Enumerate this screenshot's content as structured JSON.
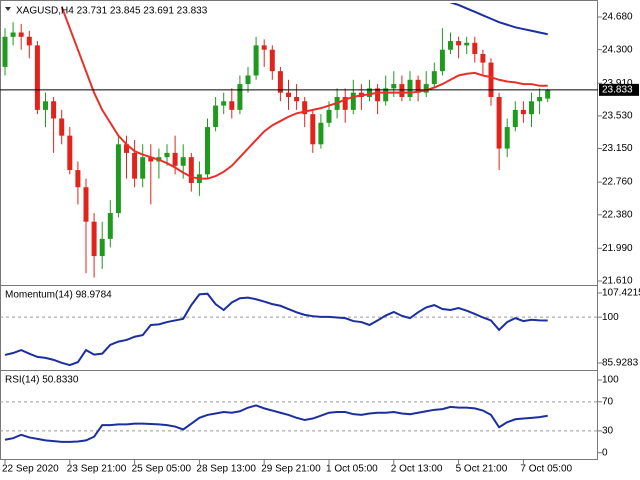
{
  "chart_data": [
    {
      "type": "candlestick",
      "title": "XAGUSD,H4  23.731 23.845 23.691 23.833",
      "categories": [
        "22 Sep 2020",
        null,
        null,
        null,
        null,
        null,
        null,
        null,
        "23 Sep 21:00",
        null,
        null,
        null,
        null,
        null,
        null,
        null,
        "25 Sep 05:00",
        null,
        null,
        null,
        null,
        null,
        null,
        null,
        "28 Sep 13:00",
        null,
        null,
        null,
        null,
        null,
        null,
        null,
        "29 Sep 21:00",
        null,
        null,
        null,
        null,
        null,
        null,
        null,
        "1 Oct 05:00",
        null,
        null,
        null,
        null,
        null,
        null,
        null,
        "2 Oct 13:00",
        null,
        null,
        null,
        null,
        null,
        null,
        null,
        "5 Oct 21:00",
        null,
        null,
        null,
        null,
        null,
        null,
        null,
        "7 Oct 05:00",
        null,
        null,
        null
      ],
      "open": [
        24.1,
        24.45,
        24.5,
        24.45,
        24.35,
        23.6,
        23.7,
        23.5,
        23.3,
        22.9,
        22.7,
        22.3,
        21.9,
        22.1,
        22.4,
        23.2,
        23.1,
        22.8,
        23.05,
        23.0,
        23.05,
        23.1,
        22.95,
        23.05,
        22.75,
        22.85,
        23.4,
        23.65,
        23.7,
        23.6,
        23.9,
        24.0,
        24.35,
        24.3,
        24.05,
        23.8,
        23.75,
        23.7,
        23.55,
        23.2,
        23.45,
        23.6,
        23.75,
        23.6,
        23.8,
        23.75,
        23.85,
        23.7,
        23.85,
        23.9,
        23.75,
        23.95,
        23.8,
        23.9,
        24.05,
        24.3,
        24.4,
        24.35,
        24.38,
        24.25,
        24.15,
        23.75,
        23.15,
        23.4,
        23.6,
        23.55,
        23.7,
        23.731
      ],
      "high": [
        24.55,
        24.62,
        24.6,
        24.52,
        24.4,
        23.8,
        23.75,
        23.6,
        23.4,
        23.0,
        22.8,
        22.4,
        22.3,
        22.55,
        23.3,
        23.3,
        23.25,
        23.2,
        23.2,
        23.15,
        23.2,
        23.3,
        23.2,
        23.1,
        23.0,
        23.5,
        23.75,
        23.8,
        23.85,
        24.0,
        24.1,
        24.45,
        24.42,
        24.35,
        24.1,
        23.95,
        23.9,
        23.75,
        23.6,
        23.55,
        23.7,
        23.85,
        23.85,
        23.95,
        23.9,
        23.95,
        23.9,
        24.0,
        24.05,
        24.0,
        24.05,
        24.0,
        24.05,
        24.15,
        24.55,
        24.5,
        24.45,
        24.45,
        24.45,
        24.3,
        24.2,
        23.8,
        23.5,
        23.7,
        23.7,
        23.8,
        23.85,
        23.845
      ],
      "low": [
        24.0,
        24.35,
        24.3,
        24.2,
        23.55,
        23.4,
        23.1,
        23.2,
        22.85,
        22.5,
        21.7,
        21.65,
        21.75,
        22.0,
        22.35,
        22.8,
        22.7,
        22.7,
        22.5,
        22.8,
        22.95,
        22.85,
        22.8,
        22.65,
        22.6,
        22.8,
        23.35,
        23.55,
        23.5,
        23.55,
        23.8,
        23.95,
        24.1,
        23.95,
        23.7,
        23.6,
        23.6,
        23.4,
        23.1,
        23.15,
        23.4,
        23.5,
        23.45,
        23.55,
        23.6,
        23.7,
        23.55,
        23.65,
        23.75,
        23.7,
        23.7,
        23.7,
        23.75,
        23.85,
        24.0,
        24.25,
        24.2,
        24.25,
        24.15,
        24.0,
        23.65,
        22.9,
        23.05,
        23.35,
        23.45,
        23.4,
        23.55,
        23.691
      ],
      "close": [
        24.45,
        24.5,
        24.45,
        24.35,
        23.6,
        23.7,
        23.5,
        23.3,
        22.9,
        22.7,
        22.3,
        21.9,
        22.1,
        22.4,
        23.2,
        23.1,
        22.8,
        23.05,
        23.0,
        23.05,
        23.1,
        22.95,
        23.05,
        22.75,
        22.85,
        23.4,
        23.65,
        23.7,
        23.6,
        23.9,
        24.0,
        24.35,
        24.3,
        24.05,
        23.8,
        23.75,
        23.7,
        23.55,
        23.2,
        23.45,
        23.6,
        23.75,
        23.6,
        23.8,
        23.75,
        23.85,
        23.7,
        23.85,
        23.9,
        23.75,
        23.95,
        23.8,
        23.9,
        24.05,
        24.3,
        24.4,
        24.35,
        24.38,
        24.25,
        24.15,
        23.75,
        23.15,
        23.4,
        23.6,
        23.55,
        23.7,
        23.75,
        23.833
      ],
      "up_color": "#1f9a1f",
      "down_color": "#e0241b",
      "series": [
        {
          "color": "#e8302b",
          "values": [
            null,
            null,
            null,
            null,
            null,
            null,
            null,
            24.8,
            24.55,
            24.3,
            24.05,
            23.8,
            23.6,
            23.45,
            23.3,
            23.2,
            23.12,
            23.08,
            23.05,
            23.02,
            22.98,
            22.93,
            22.87,
            22.82,
            22.8,
            22.8,
            22.83,
            22.88,
            22.95,
            23.05,
            23.15,
            23.25,
            23.35,
            23.42,
            23.47,
            23.52,
            23.56,
            23.58,
            23.6,
            23.62,
            23.65,
            23.68,
            23.72,
            23.75,
            23.77,
            23.78,
            23.8,
            23.8,
            23.8,
            23.8,
            23.8,
            23.81,
            23.83,
            23.86,
            23.9,
            23.95,
            24.0,
            24.02,
            24.03,
            24.0,
            23.98,
            23.95,
            23.93,
            23.92,
            23.9,
            23.9,
            23.88,
            23.88
          ]
        },
        {
          "color": "#1c2f9e",
          "values": [
            null,
            null,
            null,
            null,
            null,
            null,
            null,
            null,
            null,
            null,
            null,
            null,
            null,
            null,
            null,
            null,
            null,
            null,
            null,
            null,
            null,
            null,
            null,
            null,
            null,
            null,
            null,
            null,
            null,
            null,
            null,
            null,
            null,
            null,
            null,
            null,
            null,
            null,
            null,
            null,
            null,
            null,
            null,
            null,
            null,
            null,
            null,
            null,
            null,
            null,
            null,
            null,
            null,
            null,
            null,
            24.85,
            24.82,
            24.78,
            24.74,
            24.7,
            24.66,
            24.62,
            24.59,
            24.56,
            24.54,
            24.52,
            24.5,
            24.48
          ]
        }
      ],
      "last_price": 23.833,
      "ylim": [
        21.575,
        24.843
      ],
      "yticks": [
        {
          "value": 24.68,
          "label": "24.680"
        },
        {
          "value": 24.3,
          "label": "24.300"
        },
        {
          "value": 23.91,
          "label": "23.910"
        },
        {
          "value": 23.53,
          "label": "23.530"
        },
        {
          "value": 23.15,
          "label": "23.150"
        },
        {
          "value": 22.76,
          "label": "22.760"
        },
        {
          "value": 22.38,
          "label": "22.380"
        },
        {
          "value": 21.99,
          "label": "21.990"
        },
        {
          "value": 21.61,
          "label": "21.610"
        }
      ]
    },
    {
      "type": "line",
      "title": "Momentum(14) 98.9784",
      "series": [
        {
          "color": "#1c2f9e",
          "values": [
            88.4,
            89.0,
            89.9,
            88.8,
            87.8,
            87.5,
            86.9,
            86.0,
            85.3,
            86.2,
            89.9,
            88.5,
            88.8,
            91.5,
            92.5,
            93.0,
            94.0,
            94.5,
            97.6,
            97.8,
            98.5,
            99.0,
            99.5,
            103.7,
            107.0,
            107.2,
            104.0,
            102.2,
            104.5,
            105.8,
            106.0,
            105.5,
            104.8,
            104.0,
            103.5,
            102.5,
            101.5,
            100.7,
            100.3,
            100.1,
            100.1,
            99.9,
            99.7,
            98.8,
            98.5,
            97.6,
            99.0,
            100.5,
            101.6,
            100.4,
            99.7,
            101.5,
            103.0,
            103.7,
            102.5,
            102.2,
            102.8,
            102.0,
            101.0,
            99.9,
            99.0,
            96.1,
            98.5,
            99.7,
            98.8,
            99.2,
            99.0,
            98.9784
          ]
        }
      ],
      "ylim": [
        84.09,
        109.26
      ],
      "yticks": [
        107.4215,
        100,
        85.9283
      ],
      "levels": [
        100
      ]
    },
    {
      "type": "line",
      "title": "RSI(14) 50.8330",
      "series": [
        {
          "color": "#1c2f9e",
          "values": [
            17.8,
            20,
            24.7,
            21,
            19,
            17,
            16,
            15,
            15,
            15.5,
            17,
            22,
            38,
            38,
            39,
            39,
            40,
            40,
            39.5,
            39,
            38,
            36,
            32,
            40,
            48,
            52,
            54,
            56,
            55,
            57,
            62,
            65,
            61,
            58,
            55,
            52,
            48,
            45,
            47,
            51,
            55,
            56,
            56,
            53,
            52,
            54,
            55,
            55,
            56,
            54,
            53,
            55,
            57,
            59,
            60,
            63,
            62,
            62,
            61,
            58,
            52,
            35,
            42,
            46,
            47,
            48,
            49,
            50.833
          ]
        }
      ],
      "ylim": [
        -10,
        111
      ],
      "yticks": [
        100,
        70,
        30,
        0
      ],
      "levels": [
        70,
        30
      ]
    }
  ]
}
